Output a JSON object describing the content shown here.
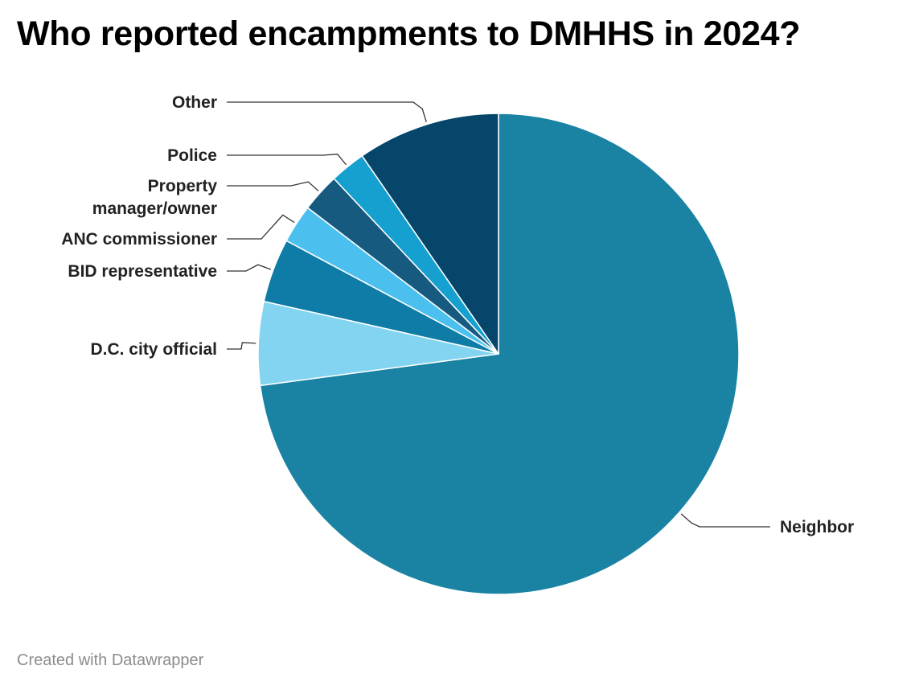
{
  "title": "Who reported encampments to DMHHS in 2024?",
  "footer": "Created with Datawrapper",
  "chart_data": {
    "type": "pie",
    "categories": [
      "Neighbor",
      "D.C. city official",
      "BID representative",
      "ANC commissioner",
      "Property manager/owner",
      "Police",
      "Other"
    ],
    "label_lines": [
      [
        "Neighbor"
      ],
      [
        "D.C. city official"
      ],
      [
        "BID representative"
      ],
      [
        "ANC commissioner"
      ],
      [
        "Property",
        "manager/owner"
      ],
      [
        "Police"
      ],
      [
        "Other"
      ]
    ],
    "values": [
      72.9,
      5.6,
      4.3,
      2.6,
      2.6,
      2.4,
      9.6
    ],
    "colors": [
      "#1a83a3",
      "#82d4f0",
      "#0e7ca7",
      "#4bc0ee",
      "#175a80",
      "#15a0cf",
      "#07466b"
    ],
    "legend": "none"
  }
}
